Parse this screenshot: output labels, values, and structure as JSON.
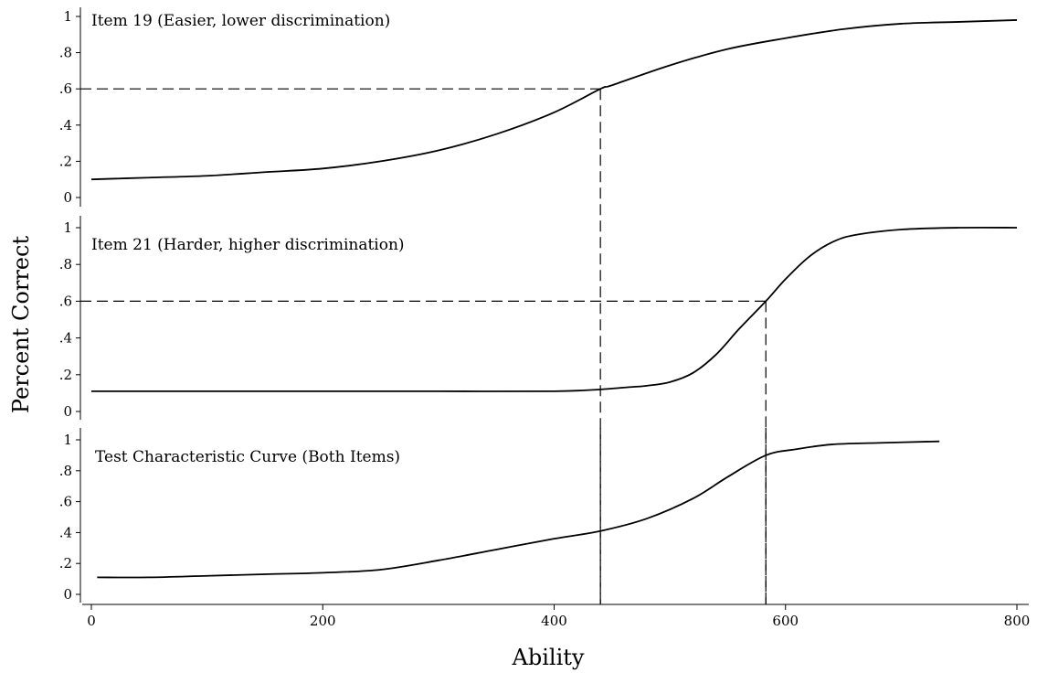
{
  "chart_data": {
    "type": "line",
    "ylabel": "Percent Correct",
    "xlabel": "Ability",
    "x_ticks": [
      0,
      200,
      400,
      600,
      800
    ],
    "x_tick_labels": [
      "0",
      "200",
      "400",
      "600",
      "800"
    ],
    "xlim": [
      0,
      800
    ],
    "y_ticks": [
      0,
      0.2,
      0.4,
      0.6,
      0.8,
      1
    ],
    "y_tick_labels": [
      "0",
      ".2",
      ".4",
      ".6",
      ".8",
      "1"
    ],
    "ylim": [
      0,
      1
    ],
    "grid": false,
    "colors": {
      "line": "#000000",
      "reference": "#000000"
    },
    "panels": [
      {
        "label": "Item 19 (Easier, lower discrimination)",
        "series": [
          {
            "x": [
              0,
              50,
              100,
              150,
              200,
              250,
              300,
              350,
              400,
              440,
              450,
              500,
              550,
              600,
              650,
              700,
              750,
              800
            ],
            "y": [
              0.1,
              0.11,
              0.12,
              0.14,
              0.16,
              0.2,
              0.26,
              0.35,
              0.47,
              0.6,
              0.62,
              0.73,
              0.82,
              0.88,
              0.93,
              0.96,
              0.97,
              0.98
            ]
          }
        ],
        "reference_lines": [
          {
            "x": 440,
            "y": 0.6
          }
        ]
      },
      {
        "label": "Item 21 (Harder, higher discrimination)",
        "series": [
          {
            "x": [
              0,
              100,
              200,
              300,
              400,
              440,
              460,
              480,
              500,
              520,
              540,
              560,
              583,
              600,
              620,
              640,
              660,
              700,
              750,
              800
            ],
            "y": [
              0.11,
              0.11,
              0.11,
              0.11,
              0.11,
              0.12,
              0.13,
              0.14,
              0.16,
              0.21,
              0.31,
              0.45,
              0.6,
              0.72,
              0.84,
              0.92,
              0.96,
              0.99,
              1.0,
              1.0
            ]
          }
        ],
        "reference_lines": [
          {
            "x": 583,
            "y": 0.6
          }
        ]
      },
      {
        "label": "Test Characteristic Curve (Both Items)",
        "series": [
          {
            "x": [
              5,
              50,
              100,
              150,
              200,
              250,
              300,
              350,
              400,
              440,
              480,
              520,
              550,
              583,
              610,
              640,
              680,
              733
            ],
            "y": [
              0.11,
              0.11,
              0.12,
              0.13,
              0.14,
              0.16,
              0.22,
              0.29,
              0.36,
              0.41,
              0.49,
              0.62,
              0.76,
              0.9,
              0.94,
              0.97,
              0.98,
              0.99
            ]
          }
        ],
        "reference_lines": [
          {
            "x": 440
          },
          {
            "x": 583
          }
        ]
      }
    ]
  }
}
